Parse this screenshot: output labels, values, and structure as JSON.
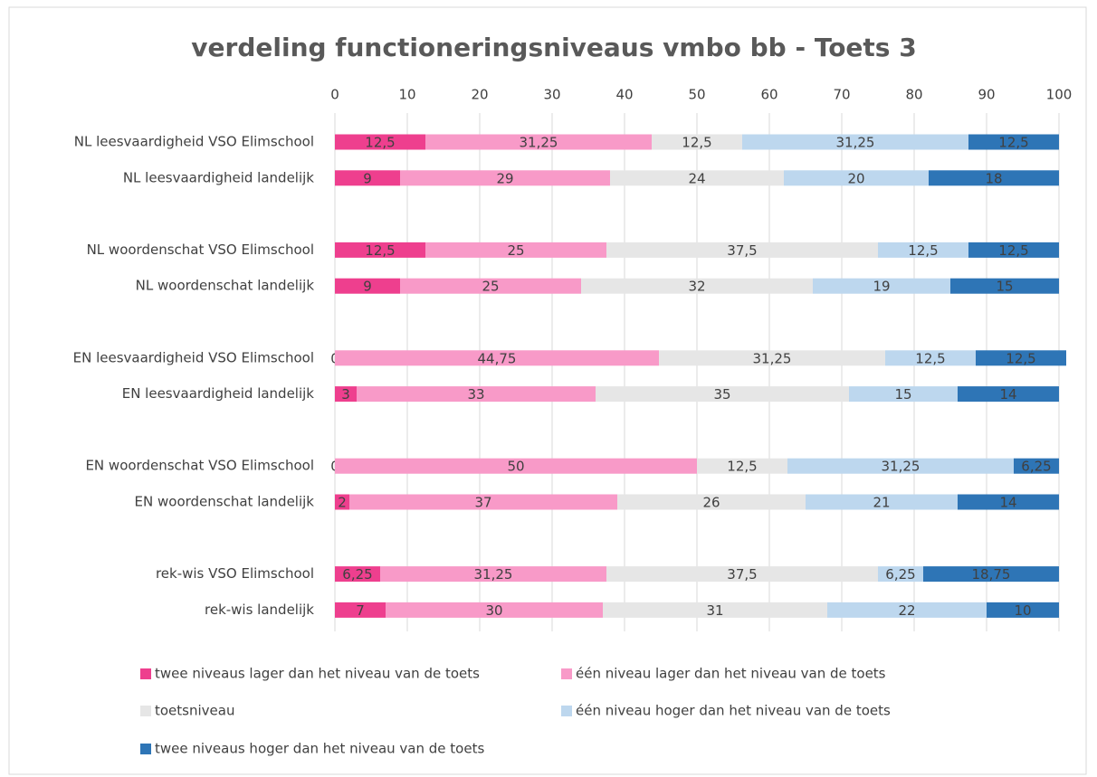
{
  "chart_data": {
    "type": "stacked-bar-horizontal",
    "title": "verdeling functioneringsniveaus vmbo bb  - Toets 3",
    "categories": [
      "NL leesvaardigheid VSO Elimschool",
      "NL leesvaardigheid landelijk",
      null,
      "NL woordenschat VSO Elimschool",
      "NL woordenschat landelijk",
      null,
      "EN leesvaardigheid VSO Elimschool",
      "EN leesvaardigheid landelijk",
      null,
      "EN woordenschat VSO Elimschool",
      "EN woordenschat landelijk",
      null,
      "rek-wis VSO Elimschool",
      "rek-wis landelijk"
    ],
    "series": [
      {
        "name": "twee niveaus lager dan het niveau van de toets",
        "color": "#ee3f8e",
        "values": [
          12.5,
          9,
          null,
          12.5,
          9,
          null,
          0,
          3,
          null,
          0,
          2,
          null,
          6.25,
          7
        ],
        "value_labels": [
          "12,5",
          "9",
          null,
          "12,5",
          "9",
          null,
          "0",
          "3",
          null,
          "0",
          "2",
          null,
          "6,25",
          "7"
        ]
      },
      {
        "name": "één niveau lager dan het niveau van de toets",
        "color": "#f89ac8",
        "values": [
          31.25,
          29,
          null,
          25,
          25,
          null,
          44.75,
          33,
          null,
          50,
          37,
          null,
          31.25,
          30
        ],
        "value_labels": [
          "31,25",
          "29",
          null,
          "25",
          "25",
          null,
          "44,75",
          "33",
          null,
          "50",
          "37",
          null,
          "31,25",
          "30"
        ]
      },
      {
        "name": "toetsniveau",
        "color": "#e6e6e6",
        "values": [
          12.5,
          24,
          null,
          37.5,
          32,
          null,
          31.25,
          35,
          null,
          12.5,
          26,
          null,
          37.5,
          31
        ],
        "value_labels": [
          "12,5",
          "24",
          null,
          "37,5",
          "32",
          null,
          "31,25",
          "35",
          null,
          "12,5",
          "26",
          null,
          "37,5",
          "31"
        ]
      },
      {
        "name": "één niveau hoger dan het niveau van de toets",
        "color": "#bdd7ee",
        "values": [
          31.25,
          20,
          null,
          12.5,
          19,
          null,
          12.5,
          15,
          null,
          31.25,
          21,
          null,
          6.25,
          22
        ],
        "value_labels": [
          "31,25",
          "20",
          null,
          "12,5",
          "19",
          null,
          "12,5",
          "15",
          null,
          "31,25",
          "21",
          null,
          "6,25",
          "22"
        ]
      },
      {
        "name": "twee niveaus hoger dan het niveau van de toets",
        "color": "#2e75b6",
        "values": [
          12.5,
          18,
          null,
          12.5,
          15,
          null,
          12.5,
          14,
          null,
          6.25,
          14,
          null,
          18.75,
          10
        ],
        "value_labels": [
          "12,5",
          "18",
          null,
          "12,5",
          "15",
          null,
          "12,5",
          "14",
          null,
          "6,25",
          "14",
          null,
          "18,75",
          "10"
        ]
      }
    ],
    "xlim": [
      0,
      100
    ],
    "xticks": [
      0,
      10,
      20,
      30,
      40,
      50,
      60,
      70,
      80,
      90,
      100
    ],
    "grid": true,
    "legend": "bottom"
  }
}
